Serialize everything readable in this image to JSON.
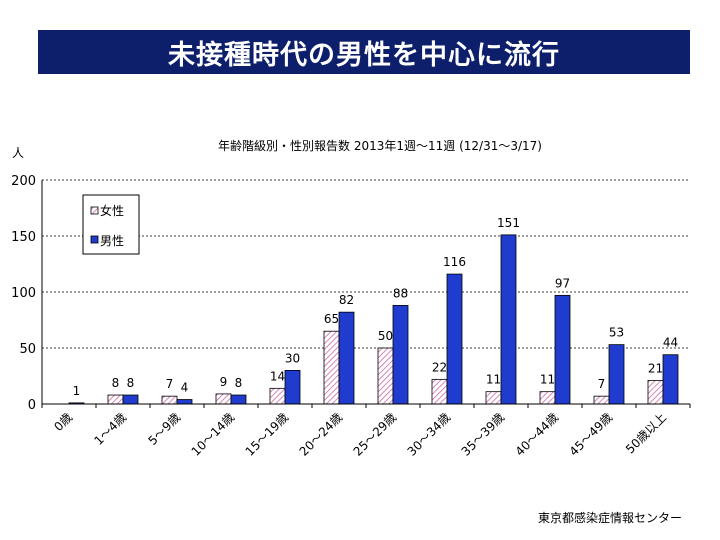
{
  "header": {
    "title": "未接種時代の男性を中心に流行"
  },
  "source": "東京都感染症情報センター",
  "colors": {
    "banner": "#0d1f6b",
    "male": "#1f3ccf",
    "female_hatch": "#cc66aa"
  },
  "chart_data": {
    "type": "bar",
    "title": "年齢階級別・性別報告数 2013年1週〜11週 (12/31〜3/17)",
    "ylabel": "人",
    "xlabel": "",
    "ylim": [
      0,
      200
    ],
    "yticks": [
      0,
      50,
      100,
      150,
      200
    ],
    "grid": true,
    "legend_position": "top-left",
    "categories": [
      "0歳",
      "1〜4歳",
      "5〜9歳",
      "10〜14歳",
      "15〜19歳",
      "20〜24歳",
      "25〜29歳",
      "30〜34歳",
      "35〜39歳",
      "40〜44歳",
      "45〜49歳",
      "50歳以上"
    ],
    "series": [
      {
        "name": "女性",
        "values": [
          null,
          8,
          7,
          9,
          14,
          65,
          50,
          22,
          11,
          11,
          7,
          21
        ]
      },
      {
        "name": "男性",
        "values": [
          1,
          8,
          4,
          8,
          30,
          82,
          88,
          116,
          151,
          97,
          53,
          44
        ]
      }
    ]
  }
}
